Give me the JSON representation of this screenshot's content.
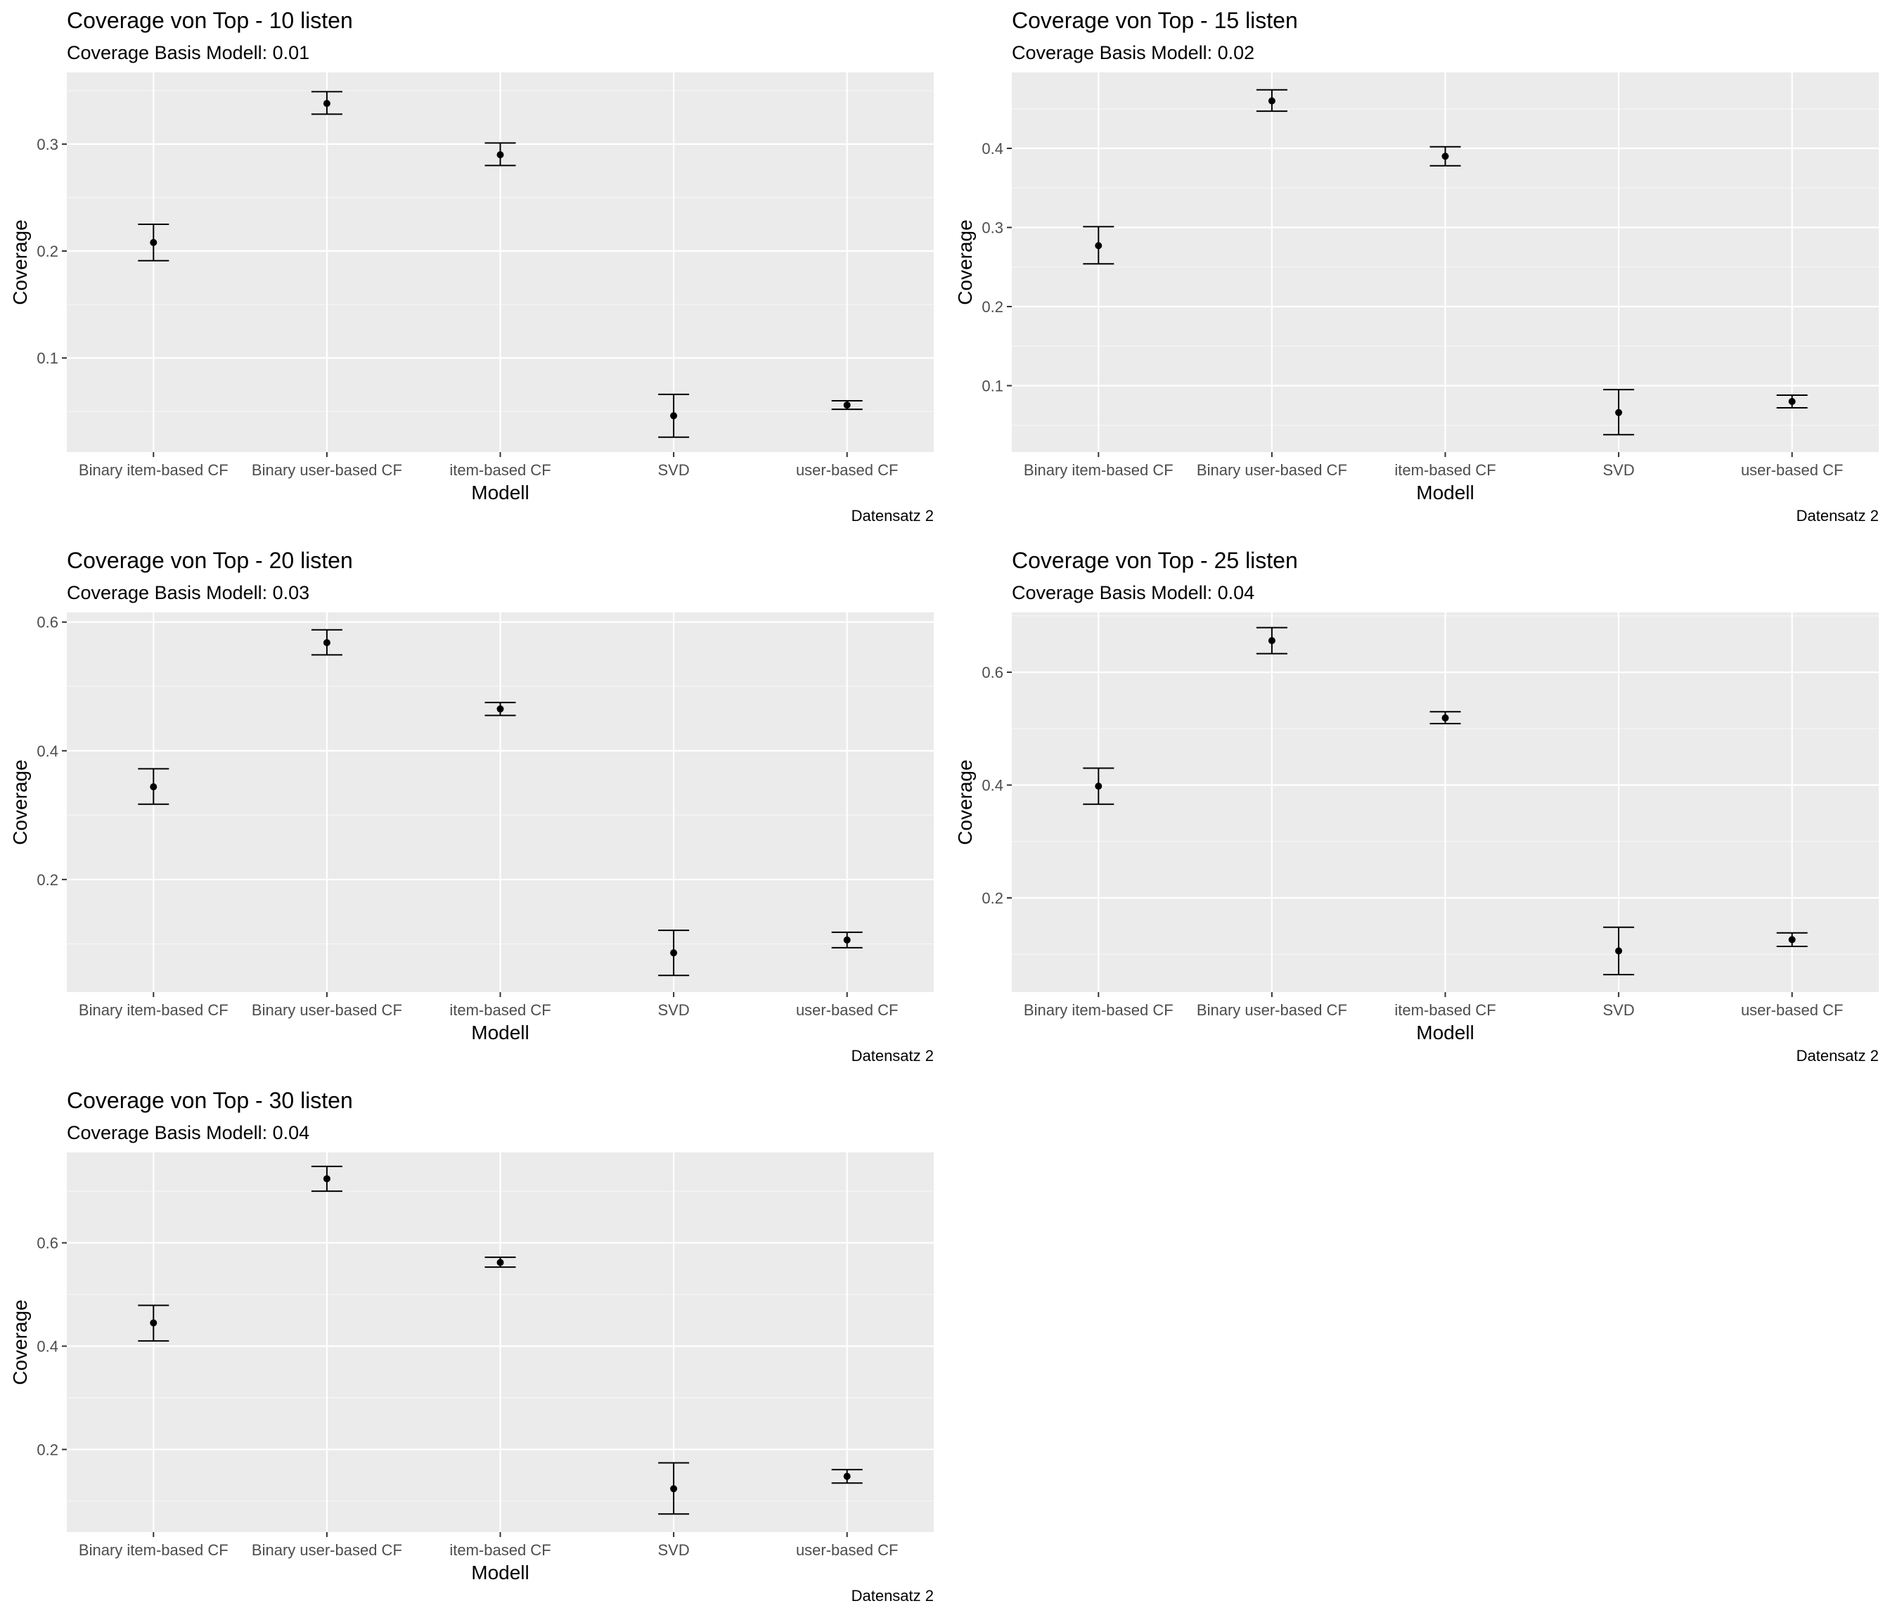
{
  "chart_data": [
    {
      "type": "scatter",
      "title": "Coverage von Top - 10  listen",
      "subtitle": "Coverage Basis Modell:  0.01",
      "xlabel": "Modell",
      "ylabel": "Coverage",
      "caption": "Datensatz 2",
      "categories": [
        "Binary item-based CF",
        "Binary user-based CF",
        "item-based CF",
        "SVD",
        "user-based CF"
      ],
      "y": [
        0.208,
        0.338,
        0.29,
        0.046,
        0.056
      ],
      "ymin": [
        0.191,
        0.328,
        0.28,
        0.026,
        0.052
      ],
      "ymax": [
        0.225,
        0.349,
        0.301,
        0.066,
        0.06
      ],
      "ylim": [
        0.012,
        0.367
      ],
      "yticks": [
        0.1,
        0.2,
        0.3
      ],
      "ytick_labels": [
        "0.1",
        "0.2",
        "0.3"
      ],
      "grid": true
    },
    {
      "type": "scatter",
      "title": "Coverage von Top - 15  listen",
      "subtitle": "Coverage Basis Modell:  0.02",
      "xlabel": "Modell",
      "ylabel": "Coverage",
      "caption": "Datensatz 2",
      "categories": [
        "Binary item-based CF",
        "Binary user-based CF",
        "item-based CF",
        "SVD",
        "user-based CF"
      ],
      "y": [
        0.277,
        0.46,
        0.39,
        0.066,
        0.08
      ],
      "ymin": [
        0.254,
        0.447,
        0.378,
        0.038,
        0.072
      ],
      "ymax": [
        0.301,
        0.474,
        0.402,
        0.095,
        0.088
      ],
      "ylim": [
        0.016,
        0.496
      ],
      "yticks": [
        0.1,
        0.2,
        0.3,
        0.4
      ],
      "ytick_labels": [
        "0.1",
        "0.2",
        "0.3",
        "0.4"
      ],
      "grid": true
    },
    {
      "type": "scatter",
      "title": "Coverage von Top - 20  listen",
      "subtitle": "Coverage Basis Modell:  0.03",
      "xlabel": "Modell",
      "ylabel": "Coverage",
      "caption": "Datensatz 2",
      "categories": [
        "Binary item-based CF",
        "Binary user-based CF",
        "item-based CF",
        "SVD",
        "user-based CF"
      ],
      "y": [
        0.344,
        0.568,
        0.465,
        0.086,
        0.106
      ],
      "ymin": [
        0.317,
        0.549,
        0.455,
        0.051,
        0.094
      ],
      "ymax": [
        0.372,
        0.588,
        0.475,
        0.121,
        0.118
      ],
      "ylim": [
        0.025,
        0.615
      ],
      "yticks": [
        0.2,
        0.4,
        0.6
      ],
      "ytick_labels": [
        "0.2",
        "0.4",
        "0.6"
      ],
      "grid": true
    },
    {
      "type": "scatter",
      "title": "Coverage von Top - 25  listen",
      "subtitle": "Coverage Basis Modell:  0.04",
      "xlabel": "Modell",
      "ylabel": "Coverage",
      "caption": "Datensatz 2",
      "categories": [
        "Binary item-based CF",
        "Binary user-based CF",
        "item-based CF",
        "SVD",
        "user-based CF"
      ],
      "y": [
        0.398,
        0.656,
        0.519,
        0.106,
        0.126
      ],
      "ymin": [
        0.366,
        0.633,
        0.509,
        0.064,
        0.114
      ],
      "ymax": [
        0.43,
        0.679,
        0.53,
        0.148,
        0.138
      ],
      "ylim": [
        0.033,
        0.706
      ],
      "yticks": [
        0.2,
        0.4,
        0.6
      ],
      "ytick_labels": [
        "0.2",
        "0.4",
        "0.6"
      ],
      "grid": true
    },
    {
      "type": "scatter",
      "title": "Coverage von Top - 30  listen",
      "subtitle": "Coverage Basis Modell:  0.04",
      "xlabel": "Modell",
      "ylabel": "Coverage",
      "caption": "Datensatz 2",
      "categories": [
        "Binary item-based CF",
        "Binary user-based CF",
        "item-based CF",
        "SVD",
        "user-based CF"
      ],
      "y": [
        0.445,
        0.724,
        0.562,
        0.124,
        0.148
      ],
      "ymin": [
        0.41,
        0.7,
        0.553,
        0.075,
        0.135
      ],
      "ymax": [
        0.479,
        0.748,
        0.572,
        0.174,
        0.161
      ],
      "ylim": [
        0.04,
        0.775
      ],
      "yticks": [
        0.2,
        0.4,
        0.6
      ],
      "ytick_labels": [
        "0.2",
        "0.4",
        "0.6"
      ],
      "grid": true
    }
  ]
}
